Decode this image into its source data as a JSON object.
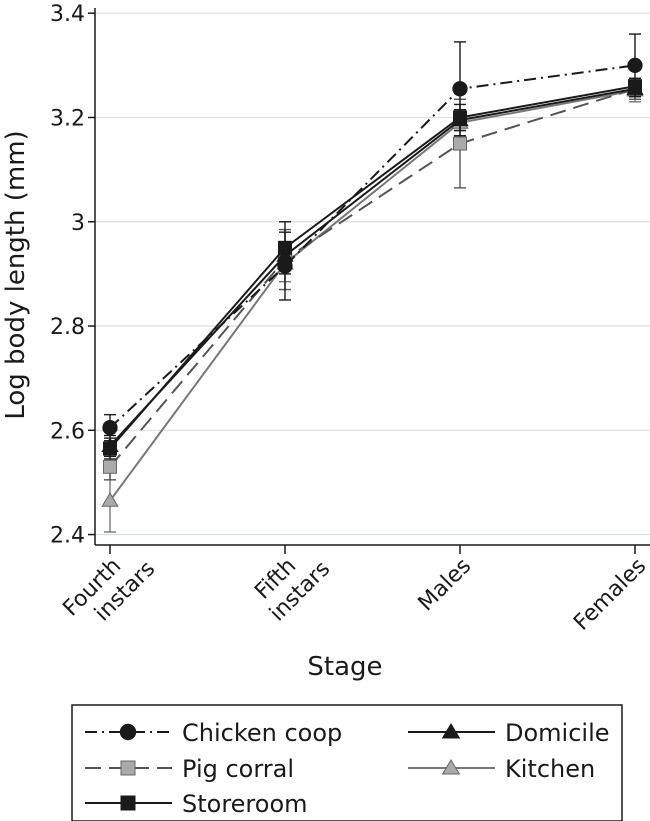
{
  "chart_data": {
    "type": "line",
    "xlabel": "Stage",
    "ylabel": "Log body length (mm)",
    "ylim": [
      2.38,
      3.41
    ],
    "grid": true,
    "legend_position": "bottom",
    "categories": [
      [
        "Fourth",
        "instars"
      ],
      [
        "Fifth",
        "instars"
      ],
      [
        "Males"
      ],
      [
        "Females"
      ]
    ],
    "y_ticks": [
      "2.4",
      "2.6",
      "2.8",
      "3",
      "3.2",
      "3.4"
    ],
    "series": [
      {
        "name": "Chicken coop",
        "values": [
          2.605,
          2.915,
          3.255,
          3.3
        ],
        "marker": "circle",
        "dash": "dashdot",
        "color": "#1a1a1a",
        "fill": "#1a1a1a",
        "errors": [
          [
            2.58,
            2.63
          ],
          [
            2.85,
            2.98
          ],
          [
            3.165,
            3.345
          ],
          [
            3.24,
            3.36
          ]
        ]
      },
      {
        "name": "Domicile",
        "values": [
          2.57,
          2.935,
          3.195,
          3.255
        ],
        "marker": "triangle",
        "dash": "solid",
        "color": "#1a1a1a",
        "fill": "#1a1a1a",
        "errors": [
          [
            2.55,
            2.59
          ],
          [
            2.91,
            2.96
          ],
          [
            3.175,
            3.215
          ],
          [
            3.24,
            3.27
          ]
        ]
      },
      {
        "name": "Pig corral",
        "values": [
          2.53,
          2.928,
          3.15,
          3.255
        ],
        "marker": "square",
        "dash": "longdash",
        "color": "#555555",
        "fill": "#aaaaaa",
        "errors": [
          [
            2.505,
            2.555
          ],
          [
            2.87,
            2.985
          ],
          [
            3.065,
            3.235
          ],
          [
            3.235,
            3.275
          ]
        ]
      },
      {
        "name": "Kitchen",
        "values": [
          2.465,
          2.92,
          3.19,
          3.252
        ],
        "marker": "triangle",
        "dash": "solid",
        "color": "#777777",
        "fill": "#aaaaaa",
        "errors": [
          [
            2.405,
            2.525
          ],
          [
            2.885,
            2.955
          ],
          [
            3.165,
            3.215
          ],
          [
            3.23,
            3.275
          ]
        ]
      },
      {
        "name": "Storeroom",
        "values": [
          2.565,
          2.95,
          3.2,
          3.26
        ],
        "marker": "square",
        "dash": "solid",
        "color": "#1a1a1a",
        "fill": "#1a1a1a",
        "errors": [
          [
            2.545,
            2.585
          ],
          [
            2.9,
            3.0
          ],
          [
            3.175,
            3.225
          ],
          [
            3.245,
            3.275
          ]
        ]
      }
    ],
    "legend": {
      "rows": [
        [
          "Chicken coop",
          "Domicile"
        ],
        [
          "Pig corral",
          "Kitchen"
        ],
        [
          "Storeroom"
        ]
      ]
    }
  }
}
